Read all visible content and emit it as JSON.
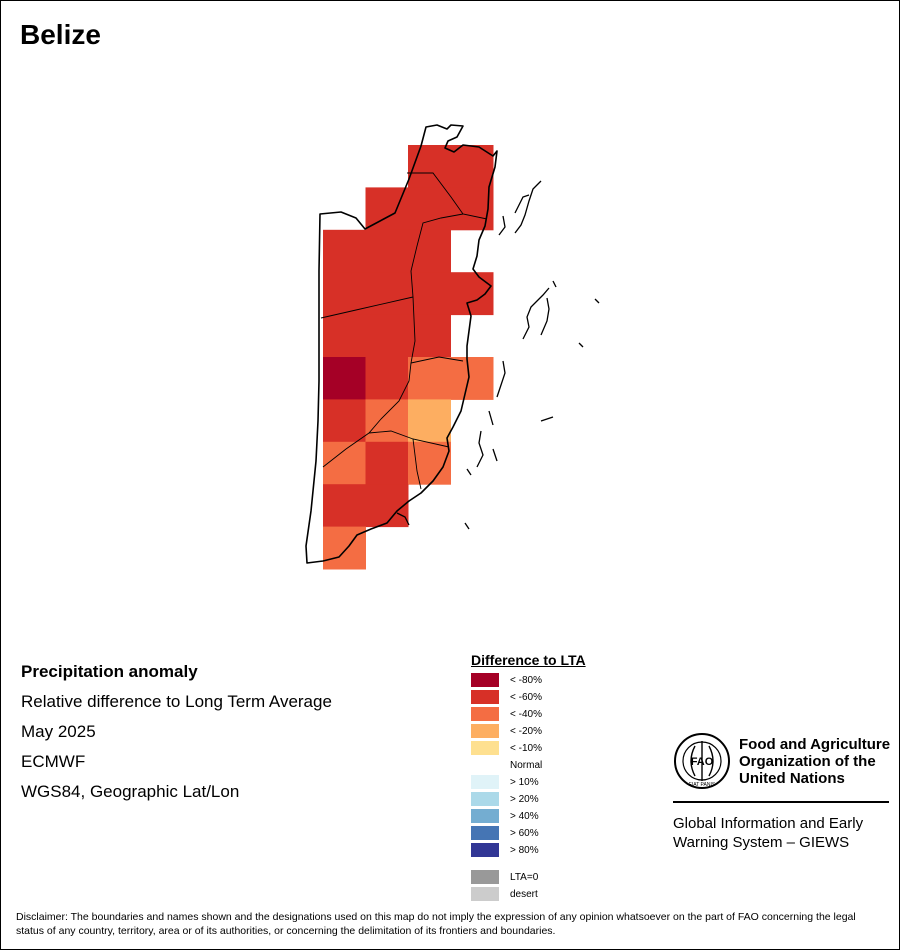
{
  "title": "Belize",
  "info": {
    "heading": "Precipitation anomaly",
    "subtitle": "Relative difference to Long Term Average",
    "period": "May 2025",
    "source": "ECMWF",
    "projection": "WGS84, Geographic Lat/Lon"
  },
  "legend": {
    "title": "Difference to LTA",
    "items": [
      {
        "label": "< -80%",
        "color": "#a50026"
      },
      {
        "label": "< -60%",
        "color": "#d73027"
      },
      {
        "label": "< -40%",
        "color": "#f46d43"
      },
      {
        "label": "< -20%",
        "color": "#fdae61"
      },
      {
        "label": "< -10%",
        "color": "#fee090"
      },
      {
        "label": "Normal",
        "color": "#ffffff"
      },
      {
        "label": "> 10%",
        "color": "#e0f3f8"
      },
      {
        "label": "> 20%",
        "color": "#abd9e9"
      },
      {
        "label": "> 40%",
        "color": "#74add1"
      },
      {
        "label": "> 60%",
        "color": "#4575b4"
      },
      {
        "label": "> 80%",
        "color": "#313695"
      }
    ],
    "extra": [
      {
        "label": "LTA=0",
        "color": "#999999"
      },
      {
        "label": "desert",
        "color": "#cccccc"
      }
    ]
  },
  "grid_cells": [
    {
      "row": 0,
      "col": 2,
      "cls": 1
    },
    {
      "row": 0,
      "col": 3,
      "cls": 1
    },
    {
      "row": 1,
      "col": 1,
      "cls": 1
    },
    {
      "row": 1,
      "col": 2,
      "cls": 1
    },
    {
      "row": 1,
      "col": 3,
      "cls": 1
    },
    {
      "row": 2,
      "col": 0,
      "cls": 1
    },
    {
      "row": 2,
      "col": 1,
      "cls": 1
    },
    {
      "row": 2,
      "col": 2,
      "cls": 1
    },
    {
      "row": 3,
      "col": 0,
      "cls": 1
    },
    {
      "row": 3,
      "col": 1,
      "cls": 1
    },
    {
      "row": 3,
      "col": 2,
      "cls": 1
    },
    {
      "row": 3,
      "col": 3,
      "cls": 1
    },
    {
      "row": 4,
      "col": 0,
      "cls": 1
    },
    {
      "row": 4,
      "col": 1,
      "cls": 1
    },
    {
      "row": 4,
      "col": 2,
      "cls": 1
    },
    {
      "row": 5,
      "col": 0,
      "cls": 0
    },
    {
      "row": 5,
      "col": 1,
      "cls": 1
    },
    {
      "row": 5,
      "col": 2,
      "cls": 2
    },
    {
      "row": 5,
      "col": 3,
      "cls": 2
    },
    {
      "row": 6,
      "col": 0,
      "cls": 1
    },
    {
      "row": 6,
      "col": 1,
      "cls": 2
    },
    {
      "row": 6,
      "col": 2,
      "cls": 3
    },
    {
      "row": 7,
      "col": 0,
      "cls": 2
    },
    {
      "row": 7,
      "col": 1,
      "cls": 1
    },
    {
      "row": 7,
      "col": 2,
      "cls": 2
    },
    {
      "row": 8,
      "col": 0,
      "cls": 1
    },
    {
      "row": 8,
      "col": 1,
      "cls": 1
    },
    {
      "row": 9,
      "col": 0,
      "cls": 2
    }
  ],
  "fao": {
    "name_lines": [
      "Food and Agriculture",
      "Organization of the",
      "United Nations"
    ],
    "giews_lines": [
      "Global Information and Early",
      "Warning System – GIEWS"
    ],
    "logo_text": "FAO",
    "logo_motto": "FIAT PANIS"
  },
  "disclaimer": "Disclaimer: The boundaries and names shown and the designations used on this map do not imply the expression of any opinion whatsoever on the part of FAO concerning the legal status of any country, territory, area or of its authorities, or concerning the delimitation of its frontiers and boundaries."
}
